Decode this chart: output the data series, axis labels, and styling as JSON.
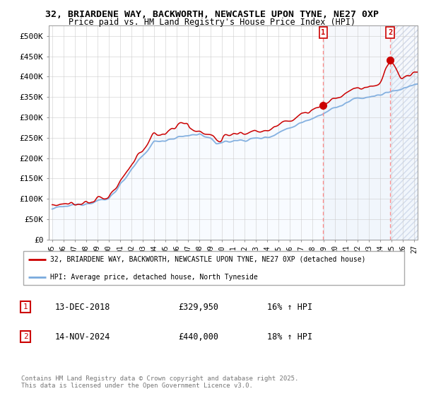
{
  "title_line1": "32, BRIARDENE WAY, BACKWORTH, NEWCASTLE UPON TYNE, NE27 0XP",
  "title_line2": "Price paid vs. HM Land Registry's House Price Index (HPI)",
  "ylabel_ticks": [
    "£0",
    "£50K",
    "£100K",
    "£150K",
    "£200K",
    "£250K",
    "£300K",
    "£350K",
    "£400K",
    "£450K",
    "£500K"
  ],
  "ytick_values": [
    0,
    50000,
    100000,
    150000,
    200000,
    250000,
    300000,
    350000,
    400000,
    450000,
    500000
  ],
  "ylim": [
    0,
    525000
  ],
  "xlim_start": 1994.7,
  "xlim_end": 2027.3,
  "sale1_date": 2018.958,
  "sale1_price": 329950,
  "sale2_date": 2024.874,
  "sale2_price": 440000,
  "line_color_red": "#cc0000",
  "line_color_blue": "#7aaadd",
  "fill_color": "#ddeeff",
  "background_color": "#ffffff",
  "grid_color": "#cccccc",
  "dashed_line_color": "#ff8888",
  "annotation_box_color": "#cc0000",
  "legend_label_red": "32, BRIARDENE WAY, BACKWORTH, NEWCASTLE UPON TYNE, NE27 0XP (detached house)",
  "legend_label_blue": "HPI: Average price, detached house, North Tyneside",
  "note1_num": "1",
  "note1_date": "13-DEC-2018",
  "note1_price": "£329,950",
  "note1_hpi": "16% ↑ HPI",
  "note2_num": "2",
  "note2_date": "14-NOV-2024",
  "note2_price": "£440,000",
  "note2_hpi": "18% ↑ HPI",
  "copyright_text": "Contains HM Land Registry data © Crown copyright and database right 2025.\nThis data is licensed under the Open Government Licence v3.0.",
  "xtick_years": [
    1995,
    1996,
    1997,
    1998,
    1999,
    2000,
    2001,
    2002,
    2003,
    2004,
    2005,
    2006,
    2007,
    2008,
    2009,
    2010,
    2011,
    2012,
    2013,
    2014,
    2015,
    2016,
    2017,
    2018,
    2019,
    2020,
    2021,
    2022,
    2023,
    2024,
    2025,
    2026,
    2027
  ]
}
